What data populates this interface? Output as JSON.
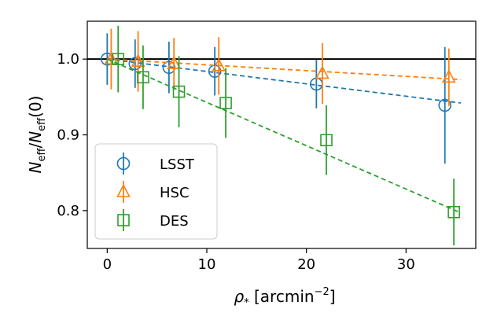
{
  "chart_data": {
    "type": "scatter",
    "title": "",
    "xlabel": "ρ* [arcmin⁻²]",
    "ylabel": "Neff/Neff(0)",
    "xlabel_parts": {
      "sym": "ρ",
      "sub": "*",
      "rest": " [arcmin",
      "sup": "−2",
      "close": "]"
    },
    "ylabel_parts": {
      "n1": "N",
      "s1": "eff",
      "slash": "/",
      "n2": "N",
      "s2": "eff",
      "tail": "(0)"
    },
    "xlim": [
      -2,
      37
    ],
    "ylim": [
      0.75,
      1.05
    ],
    "xticks": [
      0,
      10,
      20,
      30
    ],
    "xtick_labels": [
      "0",
      "10",
      "20",
      "30"
    ],
    "yticks": [
      0.8,
      0.9,
      1.0
    ],
    "ytick_labels": [
      "0.8",
      "0.9",
      "1.0"
    ],
    "grid": false,
    "legend_position": "lower-left",
    "reference_line": {
      "y": 1.0,
      "color": "#000000"
    },
    "series": [
      {
        "name": "LSST",
        "marker": "circle",
        "color": "#1f77b4",
        "x": [
          0,
          2.8,
          6.2,
          10.8,
          21.0,
          33.9
        ],
        "y": [
          1.0,
          0.994,
          0.989,
          0.984,
          0.967,
          0.939
        ],
        "err": [
          0.034,
          0.032,
          0.034,
          0.032,
          0.032,
          0.077
        ],
        "fit": {
          "x": [
            0,
            35.5
          ],
          "y": [
            1.0,
            0.942
          ]
        }
      },
      {
        "name": "HSC",
        "marker": "triangle",
        "color": "#ff7f0e",
        "x": [
          0.4,
          3.1,
          6.7,
          11.2,
          21.6,
          34.3
        ],
        "y": [
          1.0,
          0.997,
          0.994,
          0.991,
          0.981,
          0.976
        ],
        "err": [
          0.04,
          0.04,
          0.034,
          0.038,
          0.04,
          0.038
        ],
        "fit": {
          "x": [
            0,
            35.5
          ],
          "y": [
            1.0,
            0.973
          ]
        }
      },
      {
        "name": "DES",
        "marker": "square",
        "color": "#2ca02c",
        "x": [
          1.1,
          3.6,
          7.2,
          11.9,
          22.0,
          34.8
        ],
        "y": [
          1.0,
          0.976,
          0.957,
          0.942,
          0.893,
          0.798
        ],
        "err": [
          0.044,
          0.042,
          0.047,
          0.046,
          0.046,
          0.044
        ],
        "fit": {
          "x": [
            0,
            35.5
          ],
          "y": [
            1.0,
            0.797
          ]
        }
      }
    ]
  }
}
